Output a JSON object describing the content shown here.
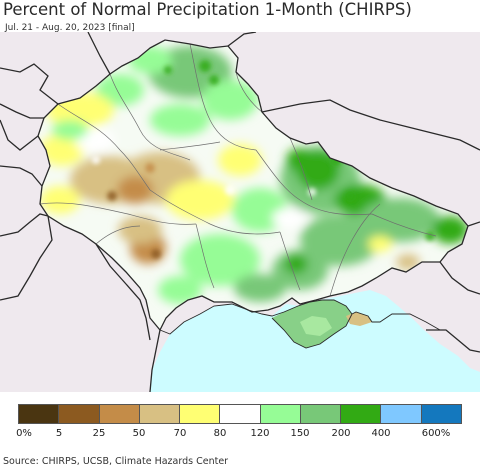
{
  "title": "Percent of Normal Precipitation 1-Month (CHIRPS)",
  "subtitle": "Jul. 21 - Aug. 20, 2023 [final]",
  "colors": {
    "land_background": "#efe9ee",
    "sea": "#cdfcff",
    "border": "#2a2a2a",
    "admin_line": "#6e6e6e"
  },
  "legend": {
    "labels": [
      "0%",
      "5",
      "25",
      "50",
      "70",
      "80",
      "120",
      "150",
      "200",
      "400",
      "600%"
    ],
    "colors": [
      "#4a3511",
      "#8c5a20",
      "#c48c48",
      "#d8c083",
      "#ffff73",
      "#ffffff",
      "#96fc96",
      "#78c878",
      "#32aa14",
      "#7fc8ff",
      "#1478be"
    ]
  },
  "source": "Source: CHIRPS, UCSB, Climate Hazards Center"
}
